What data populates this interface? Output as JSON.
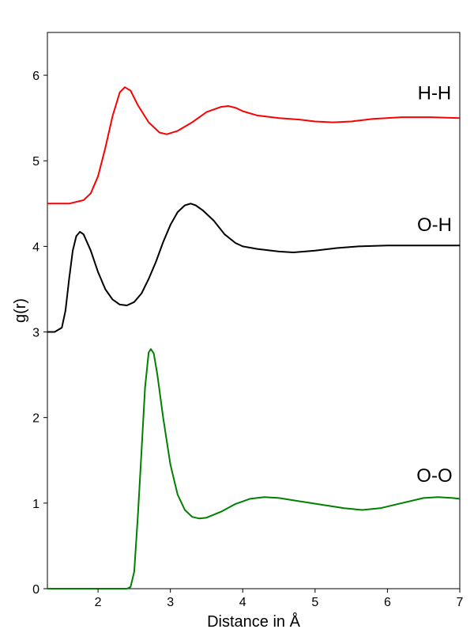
{
  "chart_data": {
    "type": "line",
    "title": "",
    "xlabel": "Distance in Å",
    "ylabel": "g(r)",
    "xlim": [
      1.3,
      7.0
    ],
    "ylim": [
      0,
      6.5
    ],
    "x_ticks": [
      "2",
      "3",
      "4",
      "5",
      "6",
      "7"
    ],
    "y_ticks": [
      "0",
      "1",
      "2",
      "3",
      "4",
      "5",
      "6"
    ],
    "grid": false,
    "legend": "none",
    "series": [
      {
        "color": "#ff0000",
        "points": [
          [
            1.3,
            4.5
          ],
          [
            1.6,
            4.5
          ],
          [
            1.8,
            4.54
          ],
          [
            1.9,
            4.62
          ],
          [
            2.0,
            4.82
          ],
          [
            2.1,
            5.15
          ],
          [
            2.2,
            5.52
          ],
          [
            2.3,
            5.8
          ],
          [
            2.37,
            5.86
          ],
          [
            2.45,
            5.82
          ],
          [
            2.55,
            5.65
          ],
          [
            2.7,
            5.45
          ],
          [
            2.85,
            5.33
          ],
          [
            2.95,
            5.31
          ],
          [
            3.1,
            5.35
          ],
          [
            3.3,
            5.45
          ],
          [
            3.5,
            5.57
          ],
          [
            3.7,
            5.63
          ],
          [
            3.8,
            5.64
          ],
          [
            3.9,
            5.62
          ],
          [
            4.0,
            5.58
          ],
          [
            4.2,
            5.53
          ],
          [
            4.5,
            5.5
          ],
          [
            4.8,
            5.48
          ],
          [
            5.0,
            5.46
          ],
          [
            5.25,
            5.45
          ],
          [
            5.5,
            5.46
          ],
          [
            5.8,
            5.49
          ],
          [
            6.2,
            5.51
          ],
          [
            6.6,
            5.51
          ],
          [
            7.0,
            5.5
          ]
        ]
      },
      {
        "color": "#000000",
        "points": [
          [
            1.3,
            3.0
          ],
          [
            1.4,
            3.0
          ],
          [
            1.5,
            3.05
          ],
          [
            1.55,
            3.25
          ],
          [
            1.6,
            3.62
          ],
          [
            1.65,
            3.95
          ],
          [
            1.7,
            4.12
          ],
          [
            1.75,
            4.17
          ],
          [
            1.8,
            4.14
          ],
          [
            1.9,
            3.95
          ],
          [
            2.0,
            3.7
          ],
          [
            2.1,
            3.5
          ],
          [
            2.2,
            3.38
          ],
          [
            2.3,
            3.32
          ],
          [
            2.4,
            3.31
          ],
          [
            2.5,
            3.35
          ],
          [
            2.6,
            3.45
          ],
          [
            2.7,
            3.62
          ],
          [
            2.8,
            3.82
          ],
          [
            2.9,
            4.05
          ],
          [
            3.0,
            4.25
          ],
          [
            3.1,
            4.4
          ],
          [
            3.2,
            4.48
          ],
          [
            3.28,
            4.5
          ],
          [
            3.35,
            4.48
          ],
          [
            3.45,
            4.42
          ],
          [
            3.6,
            4.3
          ],
          [
            3.75,
            4.14
          ],
          [
            3.9,
            4.04
          ],
          [
            4.0,
            4.0
          ],
          [
            4.2,
            3.97
          ],
          [
            4.5,
            3.94
          ],
          [
            4.7,
            3.93
          ],
          [
            5.0,
            3.95
          ],
          [
            5.3,
            3.98
          ],
          [
            5.6,
            4.0
          ],
          [
            6.0,
            4.01
          ],
          [
            6.5,
            4.01
          ],
          [
            7.0,
            4.01
          ]
        ]
      },
      {
        "color": "#008000",
        "points": [
          [
            1.3,
            0.0
          ],
          [
            2.4,
            0.0
          ],
          [
            2.45,
            0.02
          ],
          [
            2.5,
            0.2
          ],
          [
            2.55,
            0.85
          ],
          [
            2.6,
            1.6
          ],
          [
            2.65,
            2.35
          ],
          [
            2.7,
            2.76
          ],
          [
            2.73,
            2.8
          ],
          [
            2.77,
            2.75
          ],
          [
            2.82,
            2.5
          ],
          [
            2.9,
            2.0
          ],
          [
            3.0,
            1.45
          ],
          [
            3.1,
            1.1
          ],
          [
            3.2,
            0.92
          ],
          [
            3.3,
            0.84
          ],
          [
            3.4,
            0.82
          ],
          [
            3.5,
            0.83
          ],
          [
            3.7,
            0.9
          ],
          [
            3.9,
            0.99
          ],
          [
            4.1,
            1.05
          ],
          [
            4.3,
            1.07
          ],
          [
            4.5,
            1.06
          ],
          [
            4.8,
            1.02
          ],
          [
            5.1,
            0.98
          ],
          [
            5.4,
            0.94
          ],
          [
            5.65,
            0.92
          ],
          [
            5.9,
            0.94
          ],
          [
            6.2,
            1.0
          ],
          [
            6.5,
            1.06
          ],
          [
            6.7,
            1.07
          ],
          [
            6.9,
            1.06
          ],
          [
            7.0,
            1.05
          ]
        ]
      }
    ],
    "annotations": [
      {
        "text": "H-H",
        "x": 6.65,
        "y": 5.72
      },
      {
        "text": "O-H",
        "x": 6.65,
        "y": 4.18
      },
      {
        "text": "O-O",
        "x": 6.65,
        "y": 1.25
      }
    ]
  }
}
